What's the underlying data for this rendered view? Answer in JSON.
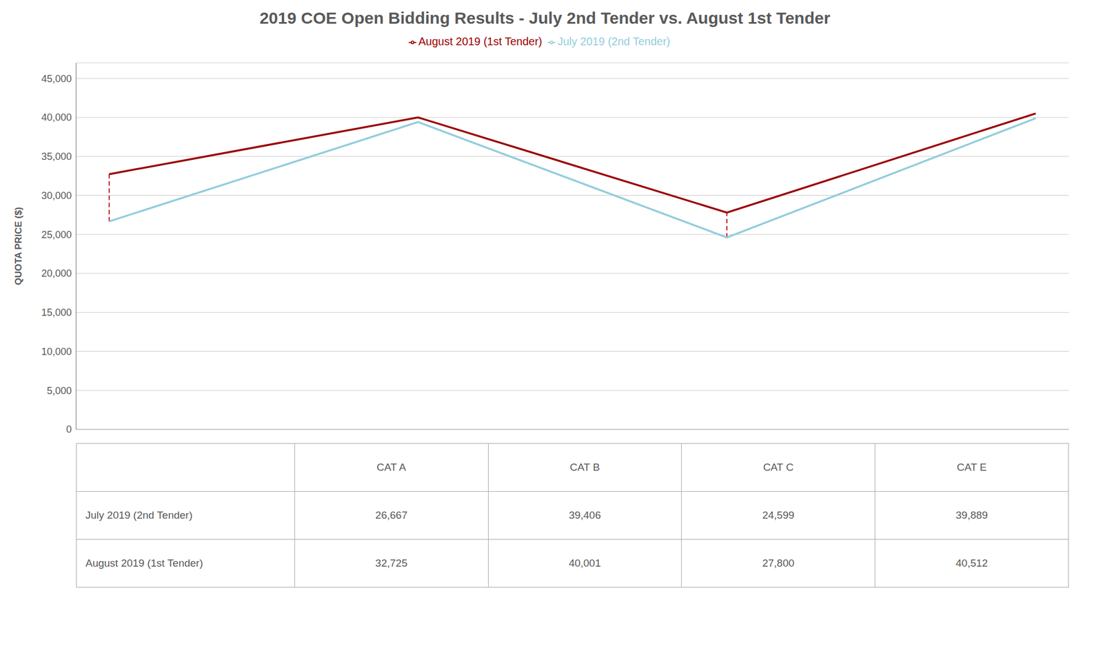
{
  "chart_data": {
    "type": "line",
    "title": "2019 COE Open Bidding Results - July 2nd Tender vs. August 1st Tender",
    "categories": [
      "CAT A",
      "CAT B",
      "CAT C",
      "CAT E"
    ],
    "series": [
      {
        "name": "July 2019 (2nd Tender)",
        "color": "#92CDDC",
        "values": [
          26667,
          39406,
          24599,
          39889
        ],
        "value_labels": [
          "26,667",
          "39,406",
          "24,599",
          "39,889"
        ]
      },
      {
        "name": "August 2019 (1st Tender)",
        "color": "#9B0000",
        "values": [
          32725,
          40001,
          27800,
          40512
        ],
        "value_labels": [
          "32,725",
          "40,001",
          "27,800",
          "40,512"
        ]
      }
    ],
    "connectors": {
      "categories": [
        "CAT A",
        "CAT C"
      ],
      "color": "#C00000",
      "line_style": "dashed"
    },
    "y_label": "QUOTA PRICE ($)",
    "ylim": [
      0,
      47000
    ],
    "yticks": [
      0,
      {
        "value": 5000,
        "label": "5,000"
      },
      {
        "value": 10000,
        "label": "10,000"
      },
      {
        "value": 15000,
        "label": "15,000"
      },
      {
        "value": 20000,
        "label": "20,000"
      },
      {
        "value": 25000,
        "label": "25,000"
      },
      {
        "value": 30000,
        "label": "30,000"
      },
      {
        "value": 35000,
        "label": "35,000"
      },
      {
        "value": 40000,
        "label": "40,000"
      },
      {
        "value": 45000,
        "label": "45,000"
      }
    ],
    "grid": true,
    "legend": "top",
    "tick_labels": "y"
  }
}
